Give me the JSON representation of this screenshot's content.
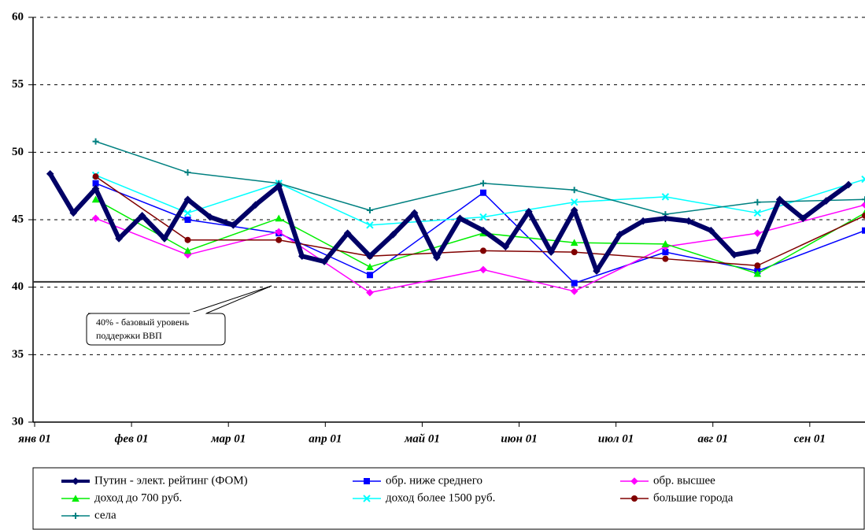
{
  "chart_data": {
    "type": "line",
    "xlim": [
      0,
      8.57
    ],
    "xticks": [
      {
        "value": 0,
        "label": "янв 01"
      },
      {
        "value": 1,
        "label": "фев 01"
      },
      {
        "value": 2,
        "label": "мар 01"
      },
      {
        "value": 3,
        "label": "апр 01"
      },
      {
        "value": 4,
        "label": "май 01"
      },
      {
        "value": 5,
        "label": "июн 01"
      },
      {
        "value": 6,
        "label": "июл 01"
      },
      {
        "value": 7,
        "label": "авг 01"
      },
      {
        "value": 8,
        "label": "сен 01"
      }
    ],
    "ylim": [
      30,
      60
    ],
    "yticks": [
      30,
      35,
      40,
      45,
      50,
      55,
      60
    ],
    "grid": true,
    "baseline": 40.4,
    "annotation": [
      "40% - базовый уровень",
      "поддержки ВВП"
    ],
    "legend": "bottom",
    "series": [
      {
        "name": "Путин - элект. рейтинг (ФОМ)",
        "color": "#000066",
        "marker": "diamond",
        "width": 6,
        "x": [
          0.16,
          0.4,
          0.63,
          0.87,
          1.11,
          1.34,
          1.58,
          1.81,
          2.05,
          2.28,
          2.52,
          2.76,
          2.99,
          3.23,
          3.46,
          3.7,
          3.92,
          4.15,
          4.39,
          4.63,
          4.86,
          5.1,
          5.33,
          5.57,
          5.8,
          6.04,
          6.28,
          6.51,
          6.75,
          6.98,
          7.22,
          7.46,
          7.69,
          7.93,
          8.17,
          8.4
        ],
        "values": [
          48.4,
          45.5,
          47.3,
          43.6,
          45.3,
          43.6,
          46.5,
          45.2,
          44.6,
          46.1,
          47.5,
          42.3,
          41.9,
          44.0,
          42.3,
          43.9,
          45.5,
          42.2,
          45.1,
          44.2,
          43.0,
          45.6,
          42.6,
          45.7,
          41.2,
          43.9,
          44.9,
          45.1,
          44.9,
          44.2,
          42.4,
          42.7,
          46.5,
          45.1,
          46.4,
          47.6
        ]
      },
      {
        "name": "обр. ниже среднего",
        "color": "#0000ff",
        "marker": "square",
        "width": 1.5,
        "x": [
          0.63,
          1.58,
          2.52,
          3.46,
          4.63,
          5.57,
          6.51,
          7.46,
          8.57
        ],
        "values": [
          47.7,
          45.0,
          44.0,
          40.9,
          47.0,
          40.3,
          42.6,
          41.2,
          44.2
        ]
      },
      {
        "name": "обр. высшее",
        "color": "#ff00ff",
        "marker": "diamond",
        "width": 1.5,
        "x": [
          0.63,
          1.58,
          2.52,
          3.46,
          4.63,
          5.57,
          6.51,
          7.46,
          8.57
        ],
        "values": [
          45.1,
          42.4,
          44.1,
          39.6,
          41.3,
          39.7,
          43.0,
          44.0,
          46.1
        ]
      },
      {
        "name": "доход до 700 руб.",
        "color": "#00ee00",
        "marker": "triangle",
        "width": 1.5,
        "x": [
          0.63,
          1.58,
          2.52,
          3.46,
          4.63,
          5.57,
          6.51,
          7.46,
          8.57
        ],
        "values": [
          46.5,
          42.7,
          45.1,
          41.5,
          44.0,
          43.3,
          43.2,
          41.0,
          45.5
        ]
      },
      {
        "name": "доход более 1500 руб.",
        "color": "#00ffff",
        "marker": "x",
        "width": 1.5,
        "x": [
          0.63,
          1.58,
          2.52,
          3.46,
          4.63,
          5.57,
          6.51,
          7.46,
          8.57
        ],
        "values": [
          48.3,
          45.5,
          47.7,
          44.6,
          45.2,
          46.3,
          46.7,
          45.5,
          48.0
        ]
      },
      {
        "name": "большие города",
        "color": "#800000",
        "marker": "circle",
        "width": 1.5,
        "x": [
          0.63,
          1.58,
          2.52,
          3.46,
          4.63,
          5.57,
          6.51,
          7.46,
          8.57
        ],
        "values": [
          48.2,
          43.5,
          43.5,
          42.3,
          42.7,
          42.6,
          42.1,
          41.6,
          45.3
        ]
      },
      {
        "name": "села",
        "color": "#008080",
        "marker": "plus",
        "width": 1.5,
        "x": [
          0.63,
          1.58,
          2.52,
          3.46,
          4.63,
          5.57,
          6.51,
          7.46,
          8.57
        ],
        "values": [
          50.8,
          48.5,
          47.7,
          45.7,
          47.7,
          47.2,
          45.4,
          46.3,
          46.5
        ]
      }
    ]
  }
}
